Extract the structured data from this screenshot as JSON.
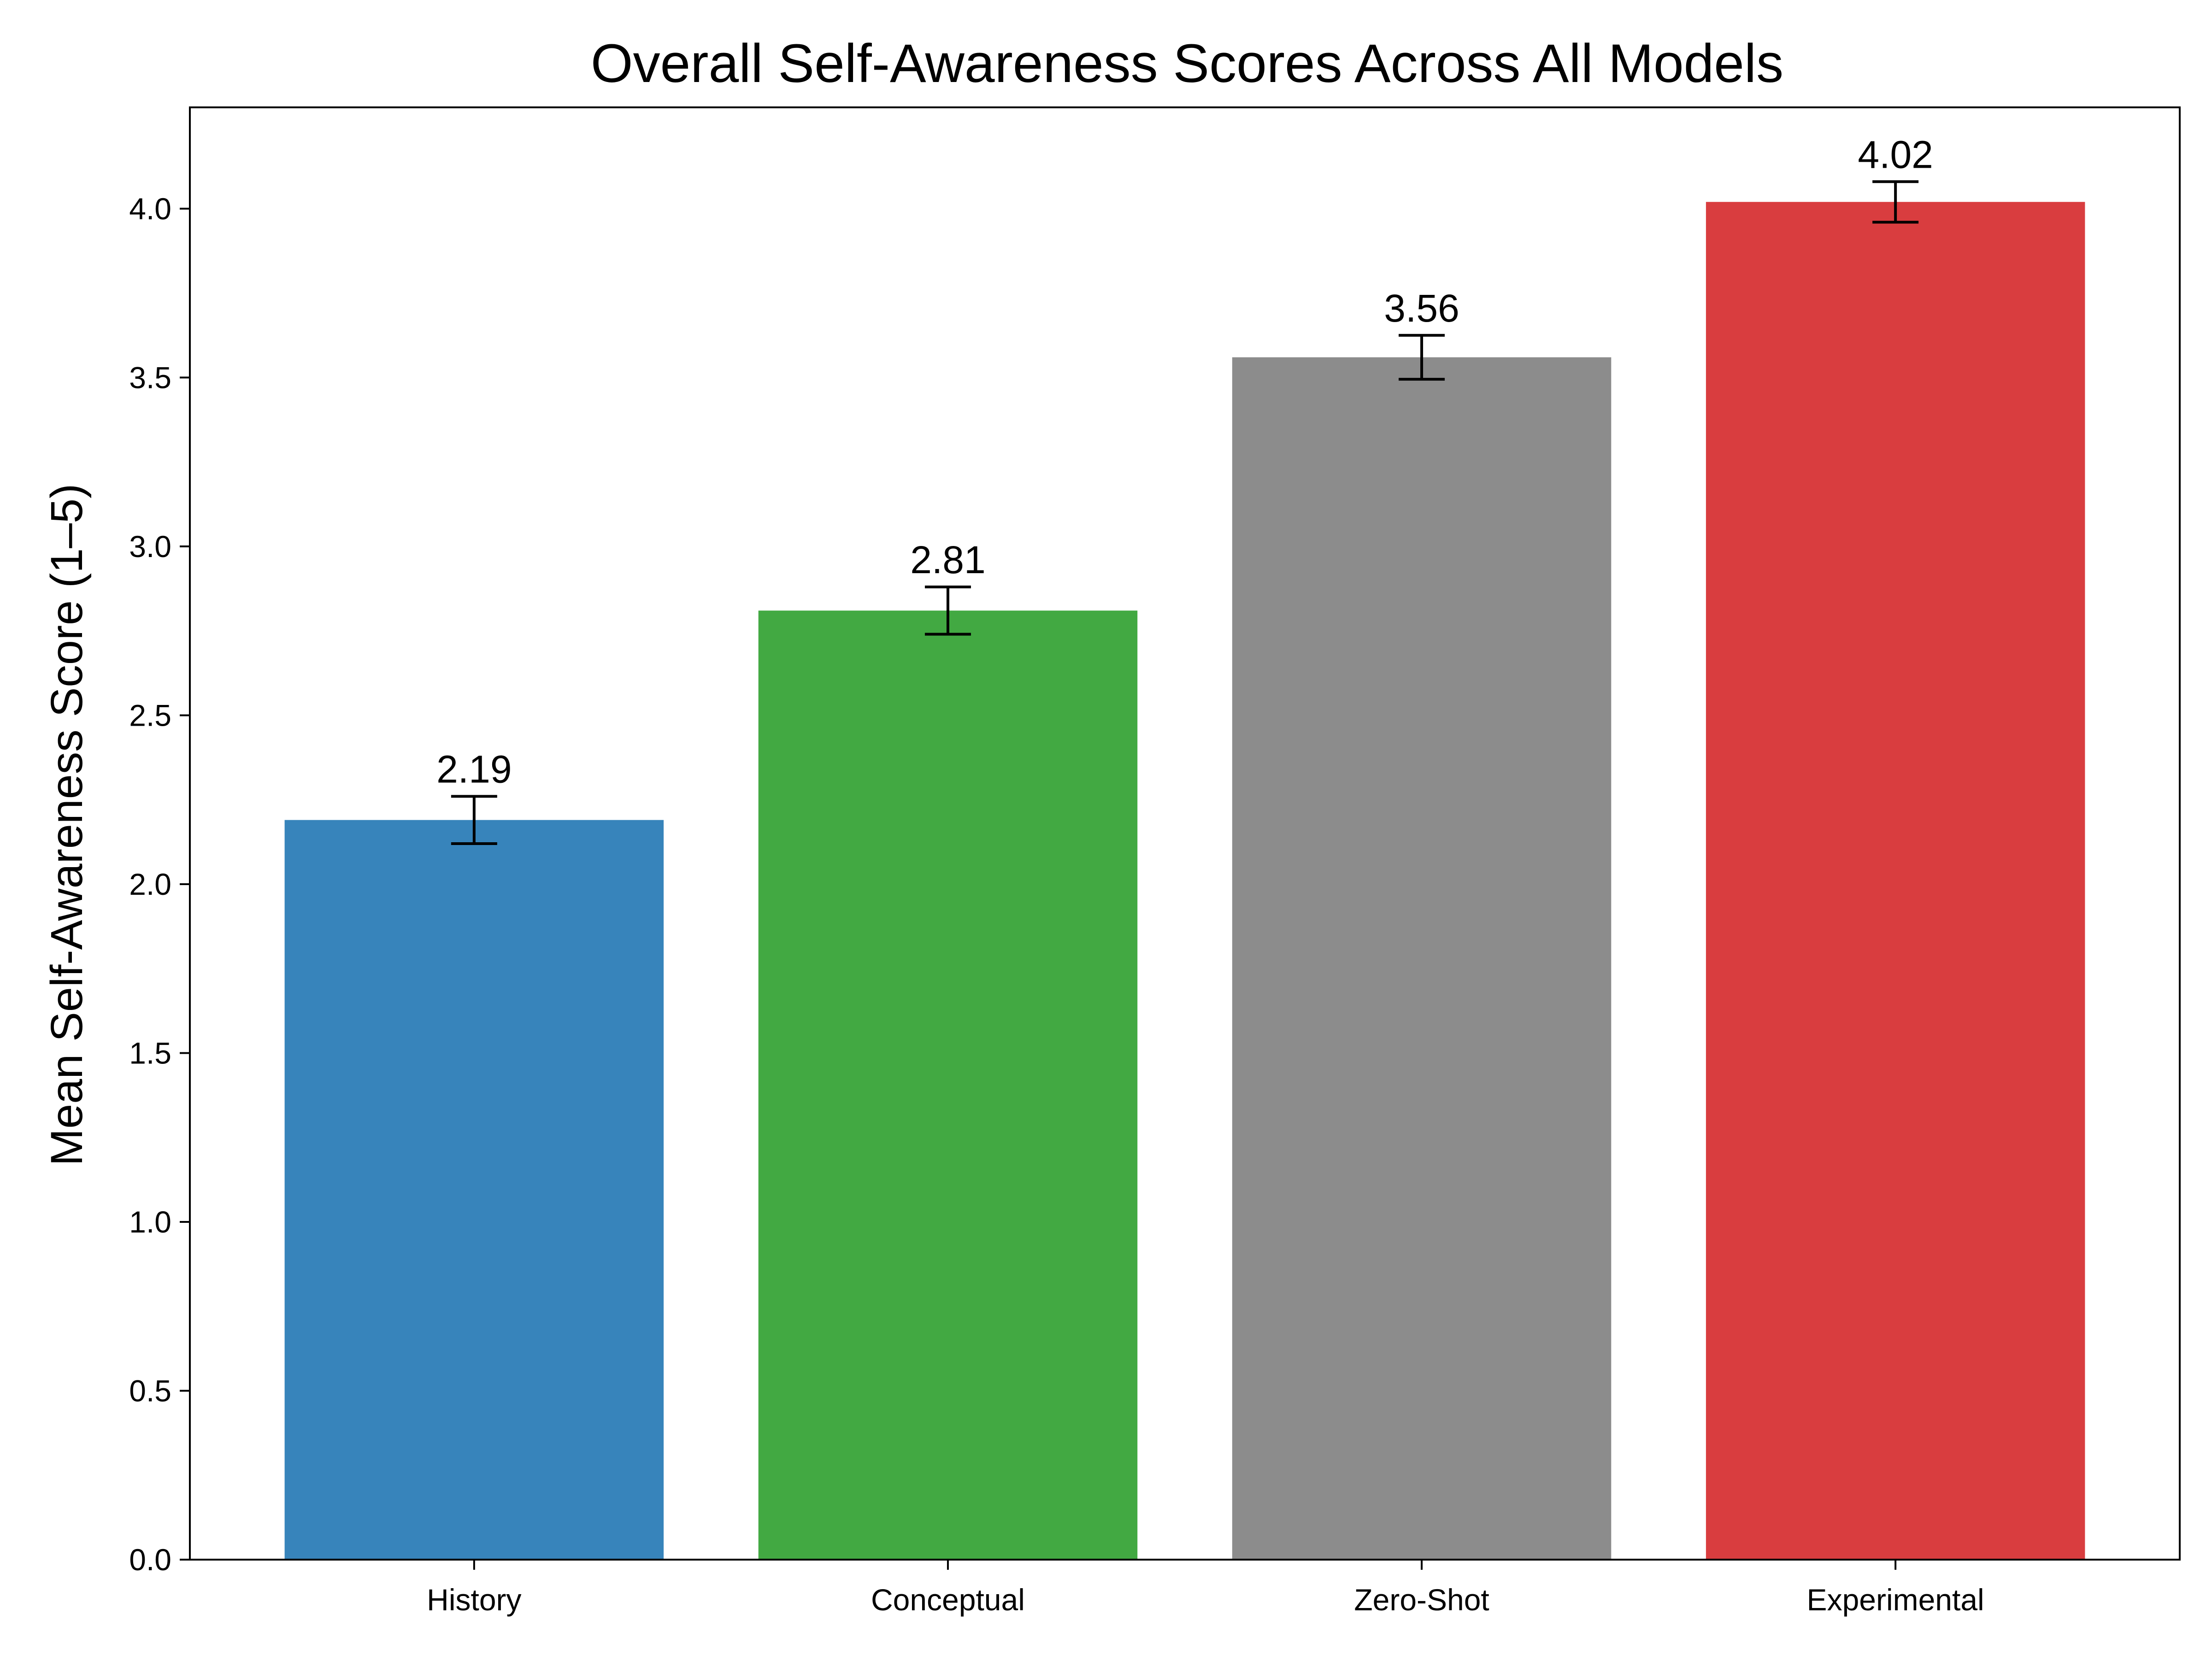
{
  "chart_data": {
    "type": "bar",
    "title": "Overall Self-Awareness Scores Across All Models",
    "xlabel": "",
    "ylabel": "Mean Self-Awareness Score (1–5)",
    "ylim": [
      0,
      4.3
    ],
    "yticks": [
      0.0,
      0.5,
      1.0,
      1.5,
      2.0,
      2.5,
      3.0,
      3.5,
      4.0
    ],
    "ytick_labels": [
      "0.0",
      "0.5",
      "1.0",
      "1.5",
      "2.0",
      "2.5",
      "3.0",
      "3.5",
      "4.0"
    ],
    "grid": false,
    "categories": [
      "History",
      "Conceptual",
      "Zero-Shot",
      "Experimental"
    ],
    "values": [
      2.19,
      2.81,
      3.56,
      4.02
    ],
    "value_labels": [
      "2.19",
      "2.81",
      "3.56",
      "4.02"
    ],
    "error": [
      0.07,
      0.07,
      0.065,
      0.06
    ],
    "colors": [
      "#3784bb",
      "#42a942",
      "#8c8c8c",
      "#d93d3f"
    ]
  }
}
